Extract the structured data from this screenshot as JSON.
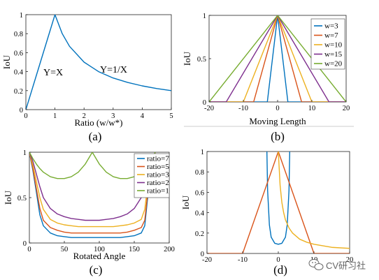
{
  "colors": {
    "blue": "#0072bd",
    "orange": "#d95319",
    "yellow": "#edb120",
    "purple": "#7e2f8e",
    "green": "#77ac30"
  },
  "panels": [
    {
      "caption": "(a)",
      "xlabel": "Ratio (w/w*)",
      "ylabel": "IoU",
      "xticks": [
        "0",
        "1",
        "2",
        "3",
        "4",
        "5"
      ],
      "yticks": [
        "0",
        "0.2",
        "0.4",
        "0.6",
        "0.8",
        "1"
      ],
      "annotations": [
        "Y=X",
        "Y=1/X"
      ]
    },
    {
      "caption": "(b)",
      "xlabel": "Moving Length",
      "ylabel": "IoU",
      "xticks": [
        "-20",
        "-10",
        "0",
        "10",
        "20"
      ],
      "yticks": [
        "0",
        "0.5",
        "1"
      ],
      "legend": [
        "w=3",
        "w=7",
        "w=10",
        "w=15",
        "w=20"
      ]
    },
    {
      "caption": "(c)",
      "xlabel": "Rotated Angle",
      "ylabel": "IoU",
      "xticks": [
        "0",
        "50",
        "100",
        "150",
        "200"
      ],
      "yticks": [
        "0",
        "0.5",
        "1"
      ],
      "legend": [
        "ratio=7",
        "ratio=5",
        "ratio=3",
        "ratio=2",
        "ratio=1"
      ]
    },
    {
      "caption": "(d)",
      "xlabel": "",
      "ylabel": "IoU",
      "xticks": [
        "-20",
        "-10",
        "0",
        "10",
        "20"
      ],
      "yticks": [
        "0",
        "0.2",
        "0.4",
        "0.6",
        "0.8",
        "1"
      ]
    }
  ],
  "watermark": {
    "text": "CV研习社",
    "icon": "wechat-icon"
  },
  "chart_data": [
    {
      "type": "line",
      "xlim": [
        0,
        5
      ],
      "ylim": [
        0,
        1
      ],
      "x": [
        0,
        0.25,
        0.5,
        0.75,
        1,
        1.25,
        1.5,
        2,
        2.5,
        3,
        3.5,
        4,
        4.5,
        5
      ],
      "series": [
        {
          "values": [
            0,
            0.25,
            0.5,
            0.75,
            1,
            0.8,
            0.667,
            0.5,
            0.4,
            0.333,
            0.286,
            0.25,
            0.222,
            0.2
          ]
        }
      ]
    },
    {
      "type": "line",
      "xlim": [
        -20,
        20
      ],
      "ylim": [
        0,
        1
      ],
      "series": [
        {
          "name": "w=3",
          "x": [
            -20,
            -3,
            0,
            3,
            20
          ],
          "values": [
            0,
            0,
            1,
            0,
            0
          ]
        },
        {
          "name": "w=7",
          "x": [
            -20,
            -7,
            0,
            7,
            20
          ],
          "values": [
            0,
            0,
            1,
            0,
            0
          ]
        },
        {
          "name": "w=10",
          "x": [
            -20,
            -10,
            0,
            10,
            20
          ],
          "values": [
            0,
            0,
            1,
            0,
            0
          ]
        },
        {
          "name": "w=15",
          "x": [
            -20,
            -15,
            0,
            15,
            20
          ],
          "values": [
            0,
            0,
            1,
            0,
            0
          ]
        },
        {
          "name": "w=20",
          "x": [
            -20,
            0,
            20
          ],
          "values": [
            0,
            1,
            0
          ]
        }
      ]
    },
    {
      "type": "line",
      "xlim": [
        0,
        200
      ],
      "ylim": [
        0,
        1
      ],
      "x": [
        0,
        5,
        10,
        15,
        20,
        30,
        40,
        50,
        60,
        70,
        80,
        90,
        100,
        110,
        120,
        130,
        140,
        150,
        160,
        165,
        170,
        175,
        180
      ],
      "series": [
        {
          "name": "ratio=7",
          "values": [
            1,
            0.8,
            0.56,
            0.31,
            0.19,
            0.11,
            0.08,
            0.07,
            0.06,
            0.06,
            0.06,
            0.06,
            0.06,
            0.06,
            0.06,
            0.06,
            0.07,
            0.08,
            0.11,
            0.19,
            0.56,
            0.8,
            1
          ]
        },
        {
          "name": "ratio=5",
          "values": [
            1,
            0.82,
            0.6,
            0.38,
            0.25,
            0.17,
            0.14,
            0.12,
            0.11,
            0.11,
            0.11,
            0.11,
            0.11,
            0.11,
            0.11,
            0.11,
            0.12,
            0.14,
            0.17,
            0.25,
            0.6,
            0.82,
            1
          ]
        },
        {
          "name": "ratio=3",
          "values": [
            1,
            0.86,
            0.68,
            0.5,
            0.37,
            0.26,
            0.22,
            0.2,
            0.19,
            0.18,
            0.18,
            0.18,
            0.18,
            0.18,
            0.18,
            0.19,
            0.2,
            0.22,
            0.26,
            0.37,
            0.68,
            0.86,
            1
          ]
        },
        {
          "name": "ratio=2",
          "values": [
            1,
            0.9,
            0.76,
            0.62,
            0.5,
            0.38,
            0.32,
            0.29,
            0.27,
            0.26,
            0.25,
            0.25,
            0.25,
            0.26,
            0.27,
            0.29,
            0.32,
            0.38,
            0.5,
            0.62,
            0.76,
            0.9,
            1
          ]
        },
        {
          "name": "ratio=1",
          "values": [
            1,
            0.93,
            0.87,
            0.82,
            0.78,
            0.73,
            0.71,
            0.71,
            0.73,
            0.78,
            0.87,
            1,
            0.87,
            0.78,
            0.73,
            0.71,
            0.71,
            0.73,
            0.78,
            0.82,
            0.87,
            0.93,
            1
          ]
        }
      ]
    },
    {
      "type": "line",
      "xlim": [
        -20,
        20
      ],
      "ylim": [
        0,
        1
      ],
      "series": [
        {
          "x": [
            -3.2,
            -3,
            -2.5,
            -2,
            -1,
            0,
            1,
            2,
            2.5,
            3,
            3.2
          ],
          "values": [
            1,
            0.62,
            0.28,
            0.16,
            0.1,
            0.09,
            0.1,
            0.16,
            0.28,
            0.62,
            1
          ]
        },
        {
          "x": [
            -20,
            -10,
            0,
            10,
            20
          ],
          "values": [
            0,
            0,
            1,
            0,
            0
          ]
        },
        {
          "x": [
            0,
            0.5,
            1,
            1.5,
            2,
            3,
            4,
            6,
            8,
            10,
            15,
            20
          ],
          "values": [
            1,
            0.67,
            0.5,
            0.4,
            0.33,
            0.25,
            0.2,
            0.14,
            0.11,
            0.09,
            0.06,
            0.05
          ]
        }
      ]
    }
  ]
}
